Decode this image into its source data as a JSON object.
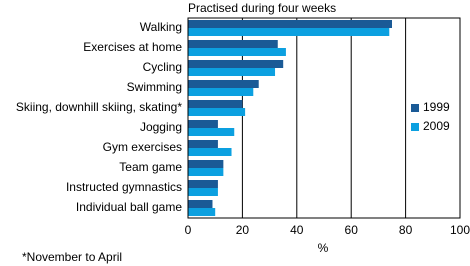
{
  "chart_data": {
    "type": "hbar",
    "title": "Practised during four weeks",
    "xlabel": "%",
    "footnote": "*November to April",
    "categories": [
      "Walking",
      "Exercises at home",
      "Cycling",
      "Swimming",
      "Skiing, downhill skiing, skating*",
      "Jogging",
      "Gym exercises",
      "Team game",
      "Instructed gymnastics",
      "Individual ball game"
    ],
    "series": [
      {
        "name": "1999",
        "color": "#1a5a96",
        "values": [
          75,
          33,
          35,
          26,
          20,
          11,
          11,
          13,
          11,
          9
        ]
      },
      {
        "name": "2009",
        "color": "#0ca0e0",
        "values": [
          74,
          36,
          32,
          24,
          21,
          17,
          16,
          13,
          11,
          10
        ]
      }
    ],
    "xlim": [
      0,
      100
    ],
    "xticks": [
      0,
      20,
      40,
      60,
      80,
      100
    ],
    "grid": true
  }
}
